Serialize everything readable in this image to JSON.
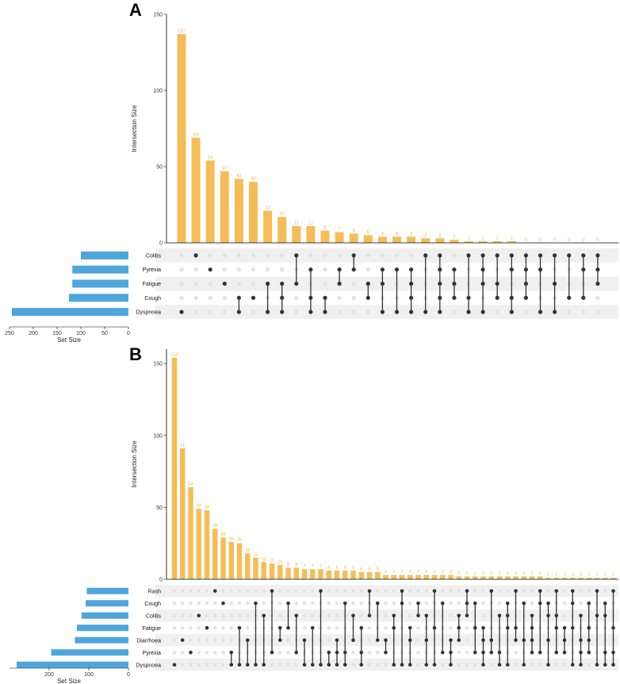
{
  "panels": [
    {
      "letter": "A",
      "colors": {
        "bar": "#f5bd57",
        "set_bar": "#4ea6dc",
        "dot_on": "#333333",
        "dot_off": "#e2e2e2",
        "stripe": "#f0f0f0",
        "label": "#f0b44a"
      },
      "chart_data": {
        "type": "upset",
        "ylabel": "Intersection Size",
        "ylim": [
          0,
          150
        ],
        "yticks": [
          0,
          50,
          100,
          150
        ],
        "set_size_label": "Set Size",
        "set_size_ticks": [
          250,
          200,
          150,
          100,
          50,
          0
        ],
        "set_size_max": 250,
        "sets": [
          "Colitis",
          "Pyrexia",
          "Fatigue",
          "Cough",
          "Dyspnoea"
        ],
        "set_sizes": [
          100,
          118,
          118,
          125,
          245
        ],
        "intersection_sizes": [
          137,
          69,
          54,
          47,
          42,
          40,
          21,
          17,
          11,
          11,
          8,
          7,
          6,
          5,
          4,
          4,
          4,
          3,
          3,
          2,
          1,
          1,
          1,
          1,
          0,
          0,
          0,
          0,
          0,
          0
        ],
        "intersections": [
          [
            4
          ],
          [
            0
          ],
          [
            1
          ],
          [
            2
          ],
          [
            3,
            4
          ],
          [
            3
          ],
          [
            2,
            4
          ],
          [
            2,
            3,
            4
          ],
          [
            0,
            2
          ],
          [
            1,
            3,
            4
          ],
          [
            3,
            4
          ],
          [
            1,
            2
          ],
          [
            0,
            1
          ],
          [
            2,
            3
          ],
          [
            1,
            2,
            4
          ],
          [
            1,
            4
          ],
          [
            1,
            2,
            3,
            4
          ],
          [
            0,
            4
          ],
          [
            0,
            1,
            2,
            3,
            4
          ],
          [
            1,
            2,
            3
          ],
          [
            0,
            3,
            4
          ],
          [
            0,
            1,
            2,
            4
          ],
          [
            0,
            2,
            3
          ],
          [
            0,
            1,
            3,
            4
          ],
          [
            0,
            1,
            2,
            3
          ],
          [
            0,
            1,
            4
          ],
          [
            0,
            2,
            4
          ],
          [
            0,
            3
          ],
          [
            0,
            1,
            3
          ],
          [
            0,
            1,
            2
          ]
        ]
      }
    },
    {
      "letter": "B",
      "colors": {
        "bar": "#f5bd57",
        "set_bar": "#4ea6dc",
        "dot_on": "#333333",
        "dot_off": "#e2e2e2",
        "stripe": "#f0f0f0",
        "label": "#f0b44a"
      },
      "chart_data": {
        "type": "upset",
        "ylabel": "Intersection Size",
        "ylim": [
          0,
          160
        ],
        "yticks": [
          0,
          50,
          100,
          150
        ],
        "set_size_label": "Set Size",
        "set_size_ticks": [
          200,
          100,
          0
        ],
        "set_size_max": 300,
        "sets": [
          "Rash",
          "Cough",
          "Colitis",
          "Fatigue",
          "Diarrhoea",
          "Pyrexia",
          "Dyspnoea"
        ],
        "set_sizes": [
          105,
          108,
          118,
          130,
          135,
          195,
          282
        ],
        "intersection_sizes": [
          154,
          91,
          64,
          49,
          48,
          35,
          29,
          26,
          25,
          18,
          15,
          12,
          11,
          10,
          8,
          8,
          7,
          7,
          7,
          6,
          6,
          6,
          6,
          5,
          5,
          5,
          3,
          3,
          3,
          3,
          3,
          3,
          3,
          3,
          3,
          2,
          2,
          2,
          2,
          2,
          2,
          2,
          2,
          2,
          2,
          2,
          1,
          1,
          1,
          1,
          1,
          1,
          1,
          1,
          1
        ],
        "intersections": [
          [
            6
          ],
          [
            4
          ],
          [
            5
          ],
          [
            2
          ],
          [
            3
          ],
          [
            0
          ],
          [
            1
          ],
          [
            5,
            6
          ],
          [
            3,
            6
          ],
          [
            4,
            6
          ],
          [
            1,
            6
          ],
          [
            2,
            6
          ],
          [
            0,
            5
          ],
          [
            3,
            4
          ],
          [
            1,
            3
          ],
          [
            2,
            5
          ],
          [
            4,
            6
          ],
          [
            3,
            6
          ],
          [
            0,
            6
          ],
          [
            5,
            6
          ],
          [
            4,
            5,
            6
          ],
          [
            1,
            5,
            6
          ],
          [
            2,
            4
          ],
          [
            3,
            5,
            6
          ],
          [
            0,
            2
          ],
          [
            1,
            4
          ],
          [
            4,
            5
          ],
          [
            2,
            3,
            6
          ],
          [
            0,
            1,
            6
          ],
          [
            3,
            4,
            6
          ],
          [
            1,
            2
          ],
          [
            2,
            4,
            6
          ],
          [
            0,
            3,
            6
          ],
          [
            1,
            5
          ],
          [
            4,
            5,
            6
          ],
          [
            2,
            3,
            4
          ],
          [
            0,
            1,
            2
          ],
          [
            1,
            3,
            5
          ],
          [
            3,
            4,
            5,
            6
          ],
          [
            0,
            4,
            5
          ],
          [
            2,
            5,
            6
          ],
          [
            1,
            2,
            3,
            6
          ],
          [
            0,
            3,
            4
          ],
          [
            1,
            4,
            6
          ],
          [
            2,
            3,
            4,
            5
          ],
          [
            0,
            1,
            5
          ],
          [
            1,
            2,
            4,
            6
          ],
          [
            0,
            2,
            3,
            5
          ],
          [
            3,
            4,
            5
          ],
          [
            0,
            1,
            3,
            6
          ],
          [
            2,
            4,
            5,
            6
          ],
          [
            1,
            3,
            4,
            5
          ],
          [
            0,
            2,
            6
          ],
          [
            1,
            2,
            5,
            6
          ],
          [
            0,
            3,
            5,
            6
          ]
        ]
      }
    }
  ]
}
